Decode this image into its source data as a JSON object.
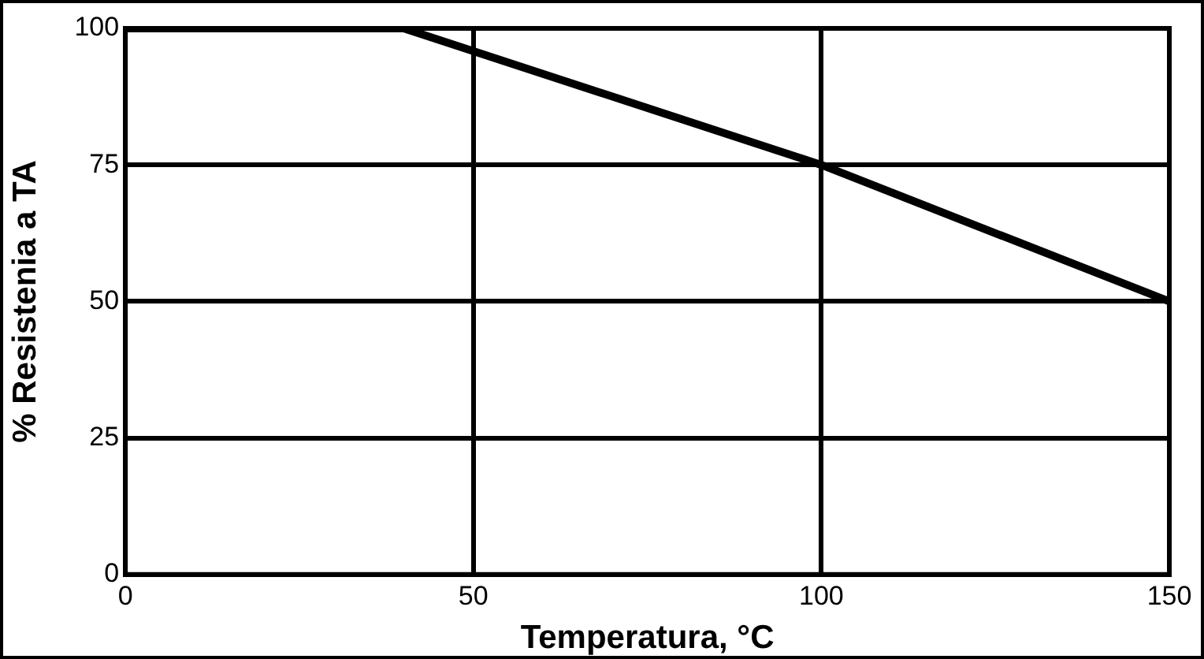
{
  "chart_data": {
    "type": "line",
    "xlabel": "Temperatura, °C",
    "ylabel": "% Resistenia a TA",
    "x": [
      0,
      40,
      100,
      150
    ],
    "series": [
      {
        "color": "#000000",
        "values": [
          100,
          100,
          75,
          50
        ]
      }
    ],
    "xlim": [
      0,
      150
    ],
    "xticks": [
      0,
      50,
      100,
      150
    ],
    "ylim": [
      0,
      100
    ],
    "yticks": [
      0,
      25,
      50,
      75,
      100
    ],
    "grid": true,
    "legend": false,
    "marker": "none",
    "line_style": "solid"
  }
}
